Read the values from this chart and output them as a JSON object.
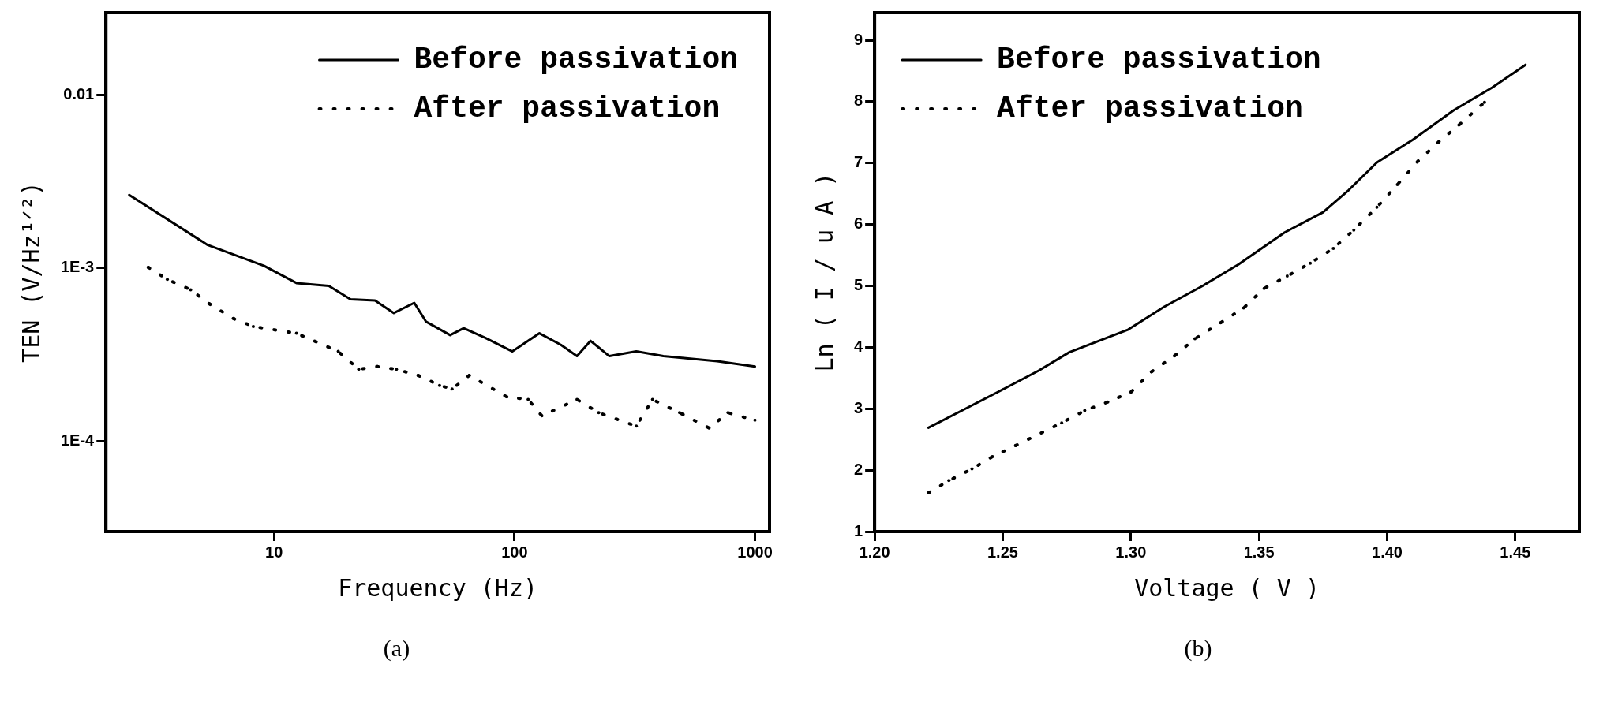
{
  "chart_data": [
    {
      "type": "line",
      "xlabel": "Frequency (Hz)",
      "ylabel": "TEN (V/Hz¹ᐟ²)",
      "annotations": [
        "(a)"
      ],
      "log": "xy",
      "grid": false,
      "legend": "top right",
      "marker": "none",
      "xlim": [
        2,
        1150
      ],
      "xticks": [
        10,
        100,
        1000
      ],
      "ylim": [
        3e-05,
        0.03
      ],
      "yticks": [
        {
          "value": 0.01,
          "label": "0.01"
        },
        {
          "value": 0.001,
          "label": "1E-3"
        },
        {
          "value": 0.0001,
          "label": "1E-4"
        }
      ],
      "series": [
        {
          "name": "Before passivation",
          "color": "#000000",
          "line_style": "solid",
          "x": [
            2.5,
            5.3,
            9.1,
            12.4,
            16.9,
            20.8,
            26.3,
            31.5,
            38.3,
            42.9,
            54,
            61.5,
            75.6,
            98,
            127,
            156,
            182,
            207,
            248,
            321,
            416,
            538,
            697,
            1000
          ],
          "values": [
            0.00265,
            0.00136,
            0.00103,
            0.00082,
            0.00079,
            0.00066,
            0.00065,
            0.00055,
            0.00063,
            0.00049,
            0.00041,
            0.00045,
            0.000395,
            0.00033,
            0.00042,
            0.00036,
            0.00031,
            0.00038,
            0.00031,
            0.00033,
            0.00031,
            0.0003,
            0.00029,
            0.00027
          ]
        },
        {
          "name": "After passivation",
          "color": "#000000",
          "line_style": "dotted",
          "x": [
            3,
            3.6,
            4.5,
            5.4,
            6.8,
            8.2,
            12.4,
            18.5,
            22.5,
            26.9,
            32.3,
            39.7,
            48.8,
            55,
            64.9,
            93,
            114,
            130,
            182,
            224,
            321,
            375,
            486,
            645,
            773,
            1000
          ],
          "values": [
            0.00101,
            0.00086,
            0.00075,
            0.00062,
            0.00051,
            0.00046,
            0.00042,
            0.00033,
            0.00026,
            0.00027,
            0.00026,
            0.00024,
            0.00021,
            0.0002,
            0.00024,
            0.00018,
            0.000174,
            0.00014,
            0.000174,
            0.000146,
            0.000122,
            0.000174,
            0.000146,
            0.000119,
            0.000146,
            0.000132
          ]
        }
      ]
    },
    {
      "type": "line",
      "xlabel": "Voltage ( V )",
      "ylabel": "Ln ( I / u A )",
      "annotations": [
        "(b)"
      ],
      "grid": false,
      "legend": "top left",
      "marker": "none",
      "xlim": [
        1.2,
        1.475
      ],
      "xticks": [
        {
          "value": 1.2,
          "label": "1.20"
        },
        1.25,
        {
          "value": 1.3,
          "label": "1.30"
        },
        1.35,
        {
          "value": 1.4,
          "label": "1.40"
        },
        1.45
      ],
      "ylim": [
        1,
        9.45
      ],
      "yticks": [
        1,
        2,
        3,
        4,
        5,
        6,
        7,
        8,
        9
      ],
      "series": [
        {
          "name": "Before passivation",
          "color": "#000000",
          "line_style": "solid",
          "x": [
            1.221,
            1.235,
            1.248,
            1.264,
            1.276,
            1.299,
            1.313,
            1.328,
            1.342,
            1.36,
            1.375,
            1.385,
            1.396,
            1.41,
            1.426,
            1.441,
            1.454
          ],
          "values": [
            2.69,
            2.99,
            3.27,
            3.62,
            3.92,
            4.29,
            4.66,
            5.0,
            5.35,
            5.87,
            6.2,
            6.56,
            7.01,
            7.38,
            7.86,
            8.23,
            8.6
          ]
        },
        {
          "name": "After passivation",
          "color": "#000000",
          "line_style": "dotted",
          "x": [
            1.221,
            1.229,
            1.238,
            1.246,
            1.255,
            1.273,
            1.282,
            1.291,
            1.3,
            1.308,
            1.317,
            1.325,
            1.335,
            1.344,
            1.352,
            1.361,
            1.37,
            1.379,
            1.387,
            1.396,
            1.404,
            1.412,
            1.42,
            1.428,
            1.438
          ],
          "values": [
            1.63,
            1.83,
            2.02,
            2.22,
            2.4,
            2.77,
            2.97,
            3.11,
            3.27,
            3.6,
            3.86,
            4.14,
            4.4,
            4.64,
            4.96,
            5.16,
            5.37,
            5.61,
            5.91,
            6.28,
            6.65,
            7.03,
            7.34,
            7.62,
            7.99
          ]
        }
      ]
    }
  ]
}
